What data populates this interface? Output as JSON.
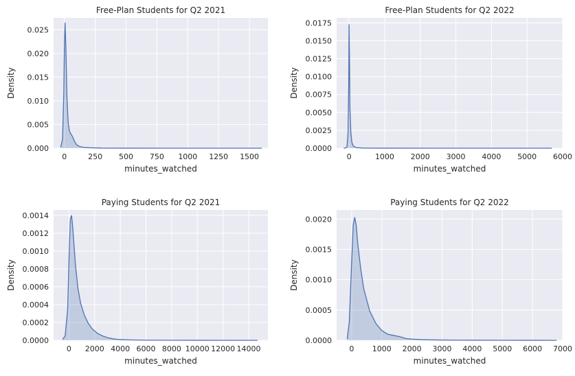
{
  "colors": {
    "axes_background": "#eaeaf2",
    "grid": "#ffffff",
    "line": "#4c72b0",
    "fill": "#4c72b0",
    "text": "#262626"
  },
  "chart_data": [
    {
      "type": "area",
      "title": "Free-Plan Students for Q2 2021",
      "xlabel": "minutes_watched",
      "ylabel": "Density",
      "xlim": [
        -88,
        1650
      ],
      "ylim": [
        0,
        0.0275
      ],
      "xticks": [
        0,
        250,
        500,
        750,
        1000,
        1250,
        1500
      ],
      "xtick_labels": [
        "0",
        "250",
        "500",
        "750",
        "1000",
        "1250",
        "1500"
      ],
      "yticks": [
        0,
        0.005,
        0.01,
        0.015,
        0.02,
        0.025
      ],
      "ytick_labels": [
        "0.000",
        "0.005",
        "0.010",
        "0.015",
        "0.020",
        "0.025"
      ],
      "grid": true,
      "series": [
        {
          "x": [
            -30,
            -15,
            -5,
            0,
            5,
            12,
            20,
            30,
            40,
            50,
            60,
            70,
            80,
            100,
            120,
            150,
            200,
            300,
            500,
            800,
            1200,
            1600
          ],
          "y": [
            0.0002,
            0.002,
            0.012,
            0.022,
            0.0265,
            0.021,
            0.011,
            0.0055,
            0.0037,
            0.0031,
            0.0027,
            0.0022,
            0.0015,
            0.0007,
            0.0004,
            0.0002,
            0.0001,
            3e-05,
            1e-05,
            5e-06,
            2e-06,
            0
          ]
        }
      ]
    },
    {
      "type": "area",
      "title": "Free-Plan Students for Q2 2022",
      "xlabel": "minutes_watched",
      "ylabel": "Density",
      "xlim": [
        -350,
        6000
      ],
      "ylim": [
        0,
        0.0182
      ],
      "xticks": [
        0,
        1000,
        2000,
        3000,
        4000,
        5000,
        6000
      ],
      "xtick_labels": [
        "0",
        "1000",
        "2000",
        "3000",
        "4000",
        "5000",
        "6000"
      ],
      "yticks": [
        0,
        0.0025,
        0.005,
        0.0075,
        0.01,
        0.0125,
        0.015,
        0.0175
      ],
      "ytick_labels": [
        "0.0000",
        "0.0025",
        "0.0050",
        "0.0075",
        "0.0100",
        "0.0125",
        "0.0150",
        "0.0175"
      ],
      "grid": true,
      "series": [
        {
          "x": [
            -150,
            -100,
            -60,
            -30,
            -10,
            0,
            10,
            25,
            50,
            80,
            120,
            200,
            400,
            1000,
            3000,
            5700
          ],
          "y": [
            0,
            2e-05,
            0.0002,
            0.002,
            0.009,
            0.0173,
            0.013,
            0.0055,
            0.0022,
            0.0008,
            0.0003,
            8e-05,
            2e-05,
            5e-06,
            1e-06,
            0
          ]
        }
      ]
    },
    {
      "type": "area",
      "title": "Paying Students for Q2 2021",
      "xlabel": "minutes_watched",
      "ylabel": "Density",
      "xlim": [
        -1200,
        15500
      ],
      "ylim": [
        0,
        0.00146
      ],
      "xticks": [
        0,
        2000,
        4000,
        6000,
        8000,
        10000,
        12000,
        14000
      ],
      "xtick_labels": [
        "0",
        "2000",
        "4000",
        "6000",
        "8000",
        "10000",
        "12000",
        "14000"
      ],
      "yticks": [
        0,
        0.0002,
        0.0004,
        0.0006,
        0.0008,
        0.001,
        0.0012,
        0.0014
      ],
      "ytick_labels": [
        "0.0000",
        "0.0002",
        "0.0004",
        "0.0006",
        "0.0008",
        "0.0010",
        "0.0012",
        "0.0014"
      ],
      "grid": true,
      "series": [
        {
          "x": [
            -500,
            -300,
            -100,
            0,
            100,
            200,
            300,
            500,
            700,
            900,
            1200,
            1500,
            1800,
            2200,
            2600,
            3000,
            3500,
            4000,
            5000,
            6000,
            8000,
            10000,
            12000,
            14000,
            14700
          ],
          "y": [
            1e-05,
            5e-05,
            0.00035,
            0.0009,
            0.00135,
            0.0014,
            0.00125,
            0.00085,
            0.00058,
            0.00042,
            0.00028,
            0.00019,
            0.00013,
            8e-05,
            5e-05,
            3e-05,
            1.5e-05,
            8e-06,
            4e-06,
            2e-06,
            1e-06,
            5e-07,
            2e-07,
            1e-07,
            0
          ]
        }
      ]
    },
    {
      "type": "area",
      "title": "Paying Students for Q2 2022",
      "xlabel": "minutes_watched",
      "ylabel": "Density",
      "xlim": [
        -500,
        7000
      ],
      "ylim": [
        0,
        0.00215
      ],
      "xticks": [
        0,
        1000,
        2000,
        3000,
        4000,
        5000,
        6000,
        7000
      ],
      "xtick_labels": [
        "0",
        "1000",
        "2000",
        "3000",
        "4000",
        "5000",
        "6000",
        "7000"
      ],
      "yticks": [
        0,
        0.0005,
        0.001,
        0.0015,
        0.002
      ],
      "ytick_labels": [
        "0.0000",
        "0.0005",
        "0.0010",
        "0.0015",
        "0.0020"
      ],
      "grid": true,
      "series": [
        {
          "x": [
            -150,
            -80,
            0,
            50,
            100,
            150,
            200,
            300,
            400,
            600,
            800,
            1000,
            1200,
            1400,
            1600,
            1800,
            2000,
            2300,
            2600,
            3000,
            3500,
            4000,
            5000,
            6000,
            6800
          ],
          "y": [
            2e-05,
            0.0003,
            0.0013,
            0.0019,
            0.00203,
            0.0019,
            0.0016,
            0.00118,
            0.00085,
            0.00048,
            0.00028,
            0.00016,
            0.0001,
            8e-05,
            6e-05,
            3e-05,
            2e-05,
            1.2e-05,
            8e-06,
            5e-06,
            3e-06,
            2e-06,
            1e-06,
            5e-07,
            0
          ]
        }
      ]
    }
  ]
}
